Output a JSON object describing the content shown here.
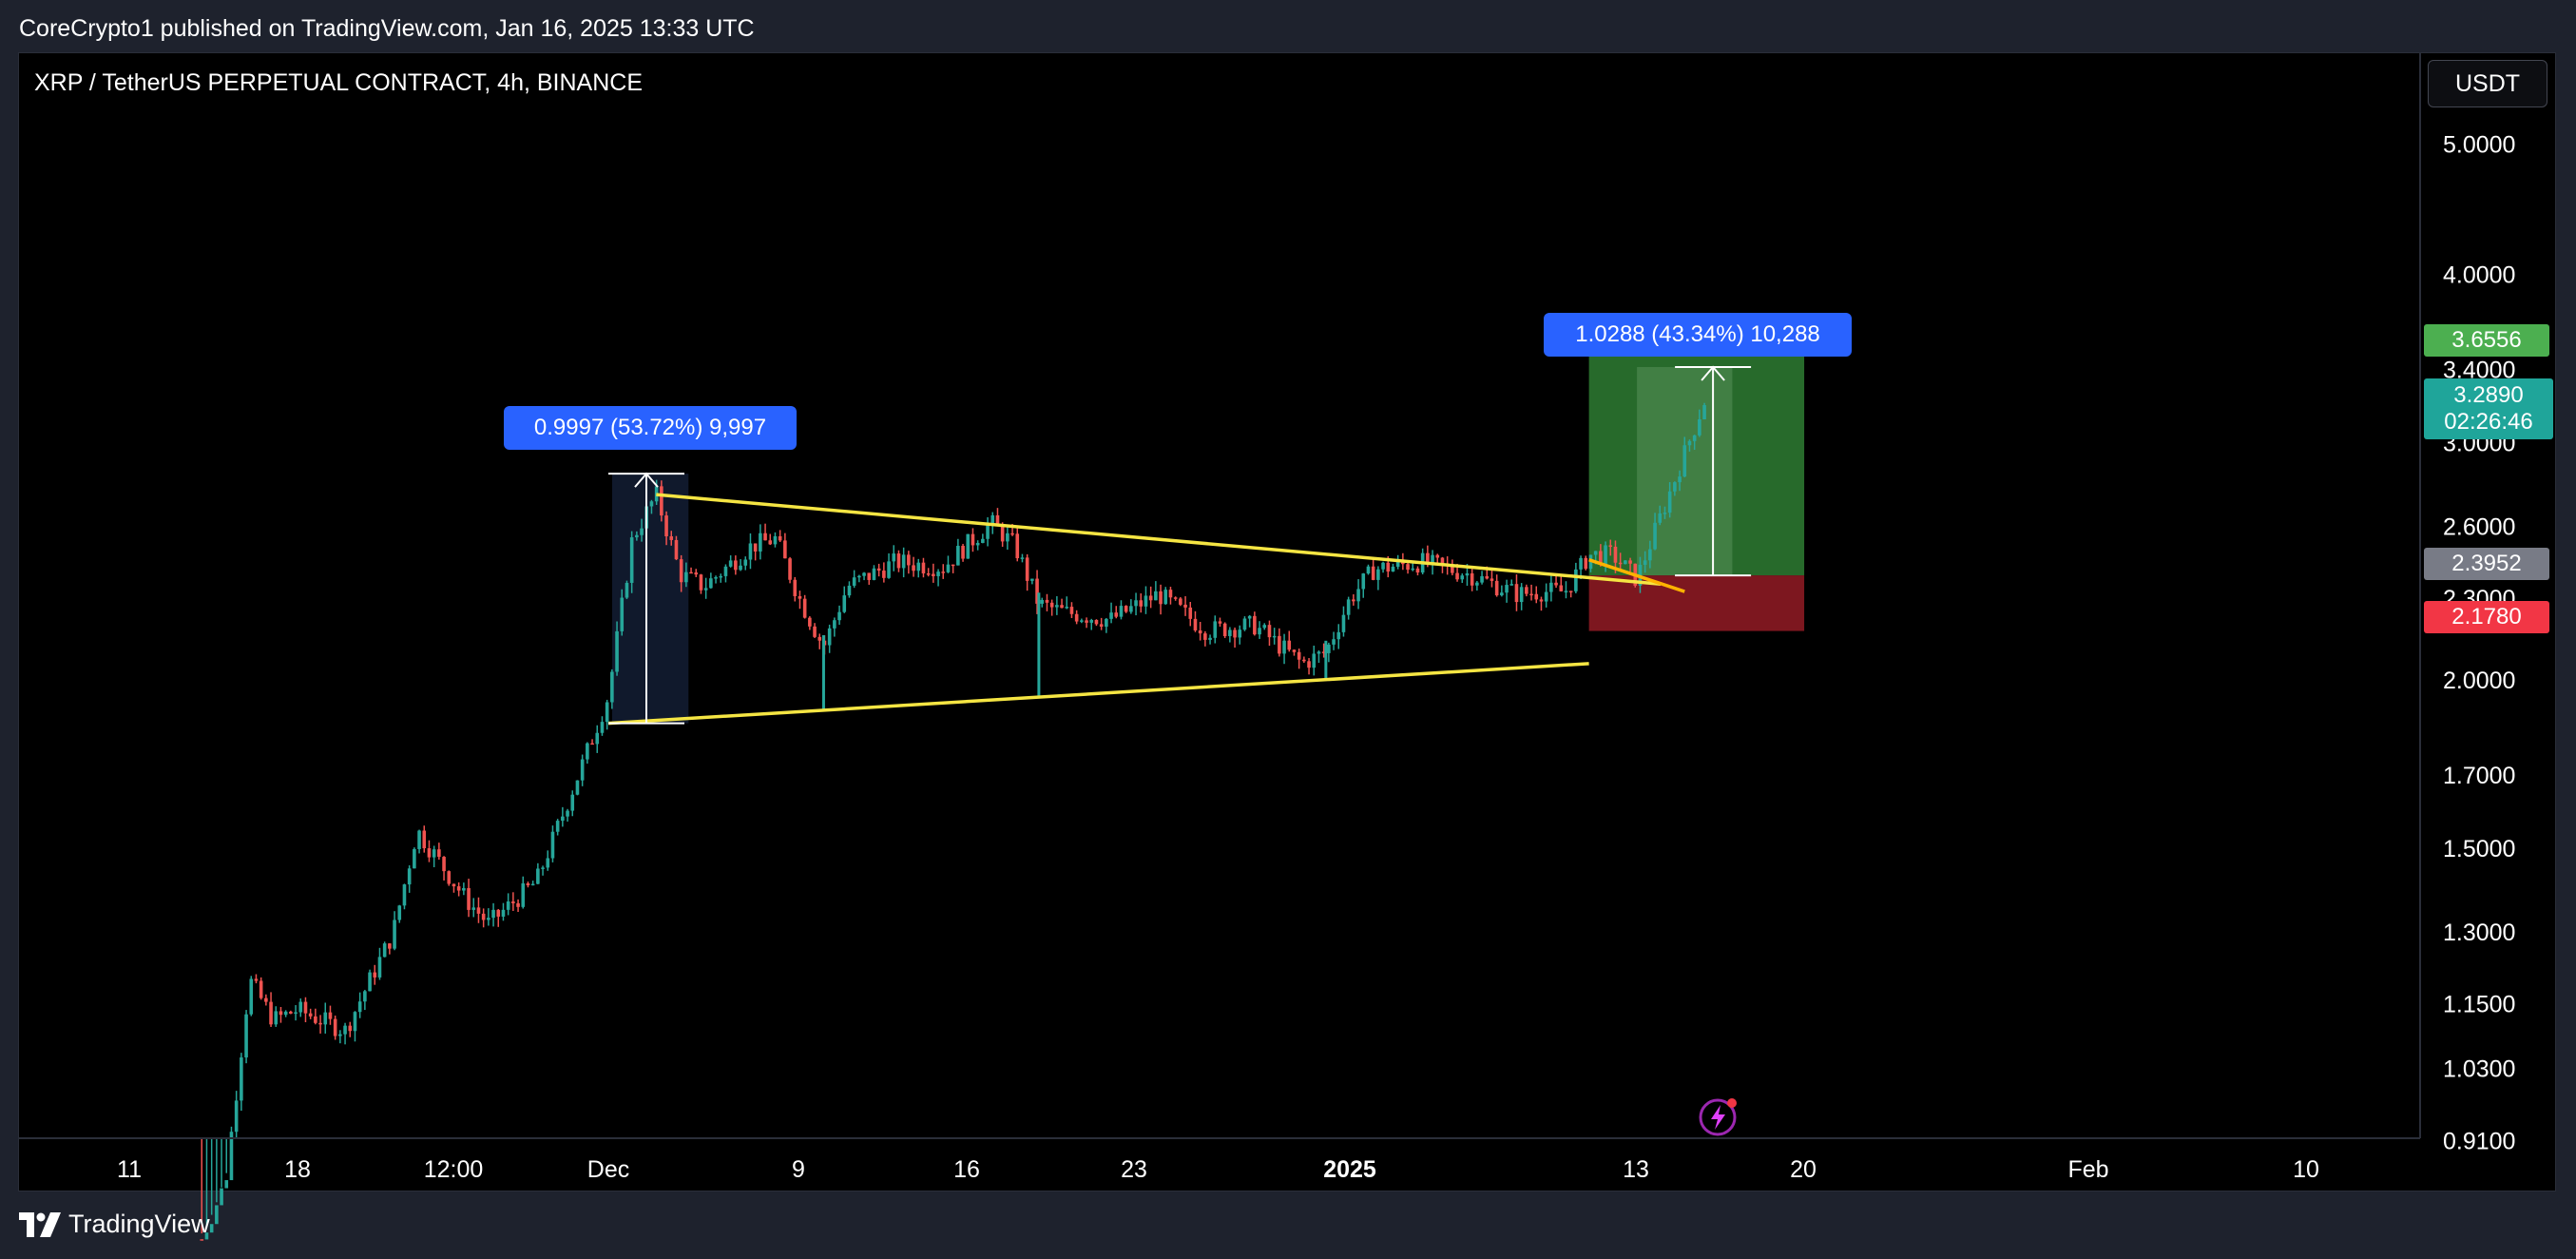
{
  "header": {
    "published_text": "CoreCrypto1 published on TradingView.com, Jan 16, 2025 13:33 UTC"
  },
  "chart_header": {
    "title": "XRP / TetherUS PERPETUAL CONTRACT, 4h, BINANCE",
    "currency_button": "USDT"
  },
  "footer": {
    "brand": "TradingView",
    "logo_icon": "tradingview-logo-icon"
  },
  "measurements": {
    "first": "0.9997 (53.72%) 9,997",
    "second": "1.0288 (43.34%) 10,288"
  },
  "price_tags": {
    "target": "3.6556",
    "last_price": "3.2890",
    "countdown": "02:26:46",
    "entry": "2.3952",
    "stop": "2.1780"
  },
  "colors": {
    "background": "#000000",
    "outer_background": "#1e222d",
    "candle_up": "#26a69a",
    "candle_down": "#ef5350",
    "trendline": "#f5e543",
    "target_zone": "#4caf50",
    "stop_zone": "#8b1a22",
    "measure_label": "#2962ff",
    "last_price_tag": "#1fa59a"
  },
  "chart_data": {
    "type": "candlestick",
    "title": "XRP / TetherUS PERPETUAL CONTRACT, 4h, BINANCE",
    "y_scale": "log",
    "ylim": [
      0.78,
      6.2
    ],
    "y_ticks": [
      "5.0000",
      "4.0000",
      "3.4000",
      "3.0000",
      "2.6000",
      "2.3000",
      "2.0000",
      "1.7000",
      "1.5000",
      "1.3000",
      "1.1500",
      "1.0300",
      "0.9100"
    ],
    "x_ticks": [
      "11",
      "18",
      "12:00",
      "Dec",
      "9",
      "16",
      "23",
      "2025",
      "13",
      "20",
      "Feb",
      "10"
    ],
    "x_ticks_bold": [
      "2025"
    ],
    "price_path": [
      {
        "date": "2024-11-14",
        "price": 0.77
      },
      {
        "date": "2024-11-15",
        "price": 0.85
      },
      {
        "date": "2024-11-16",
        "price": 1.2
      },
      {
        "date": "2024-11-17",
        "price": 1.12
      },
      {
        "date": "2024-11-18",
        "price": 1.14
      },
      {
        "date": "2024-11-20",
        "price": 1.1
      },
      {
        "date": "2024-11-22",
        "price": 1.3
      },
      {
        "date": "2024-11-23",
        "price": 1.55
      },
      {
        "date": "2024-11-25",
        "price": 1.38
      },
      {
        "date": "2024-11-26",
        "price": 1.32
      },
      {
        "date": "2024-11-28",
        "price": 1.42
      },
      {
        "date": "2024-11-30",
        "price": 1.75
      },
      {
        "date": "2024-12-01",
        "price": 1.95
      },
      {
        "date": "2024-12-02",
        "price": 2.55
      },
      {
        "date": "2024-12-03",
        "price": 2.75
      },
      {
        "date": "2024-12-04",
        "price": 2.4
      },
      {
        "date": "2024-12-05",
        "price": 2.35
      },
      {
        "date": "2024-12-07",
        "price": 2.52
      },
      {
        "date": "2024-12-08",
        "price": 2.55
      },
      {
        "date": "2024-12-09",
        "price": 2.3
      },
      {
        "date": "2024-12-10",
        "price": 2.12
      },
      {
        "date": "2024-12-11",
        "price": 2.35
      },
      {
        "date": "2024-12-13",
        "price": 2.45
      },
      {
        "date": "2024-12-15",
        "price": 2.43
      },
      {
        "date": "2024-12-17",
        "price": 2.62
      },
      {
        "date": "2024-12-18",
        "price": 2.52
      },
      {
        "date": "2024-12-19",
        "price": 2.28
      },
      {
        "date": "2024-12-20",
        "price": 2.25
      },
      {
        "date": "2024-12-22",
        "price": 2.22
      },
      {
        "date": "2024-12-24",
        "price": 2.32
      },
      {
        "date": "2024-12-26",
        "price": 2.18
      },
      {
        "date": "2024-12-28",
        "price": 2.2
      },
      {
        "date": "2024-12-30",
        "price": 2.06
      },
      {
        "date": "2024-12-31",
        "price": 2.1
      },
      {
        "date": "2025-01-01",
        "price": 2.3
      },
      {
        "date": "2025-01-02",
        "price": 2.42
      },
      {
        "date": "2025-01-04",
        "price": 2.45
      },
      {
        "date": "2025-01-06",
        "price": 2.4
      },
      {
        "date": "2025-01-08",
        "price": 2.32
      },
      {
        "date": "2025-01-09",
        "price": 2.33
      },
      {
        "date": "2025-01-10",
        "price": 2.33
      },
      {
        "date": "2025-01-11",
        "price": 2.48
      },
      {
        "date": "2025-01-12",
        "price": 2.48
      },
      {
        "date": "2025-01-13",
        "price": 2.38
      },
      {
        "date": "2025-01-14",
        "price": 2.65
      },
      {
        "date": "2025-01-15",
        "price": 2.95
      },
      {
        "date": "2025-01-16",
        "price": 3.289
      }
    ],
    "spikes": [
      {
        "date": "2024-12-10",
        "low": 1.9
      },
      {
        "date": "2024-12-19",
        "low": 1.95
      },
      {
        "date": "2024-12-31",
        "low": 2.0
      }
    ],
    "trendlines": [
      {
        "name": "upper",
        "points": [
          {
            "date": "2024-12-03",
            "price": 2.75
          },
          {
            "date": "2025-01-14",
            "price": 2.36
          }
        ]
      },
      {
        "name": "lower",
        "points": [
          {
            "date": "2024-12-01",
            "price": 1.86
          },
          {
            "date": "2025-01-11",
            "price": 2.06
          }
        ]
      }
    ],
    "measure_1": {
      "from": {
        "date": "2024-12-01",
        "price": 1.86
      },
      "to": {
        "date": "2024-12-03",
        "price": 2.85
      }
    },
    "measure_2": {
      "from": {
        "date": "2025-01-14",
        "price": 2.3952
      },
      "to": {
        "date": "2025-01-16",
        "price": 3.42
      }
    },
    "position": {
      "start": "2025-01-11",
      "end": "2025-01-20",
      "entry": 2.3952,
      "target": 3.6556,
      "stop": 2.178
    }
  }
}
